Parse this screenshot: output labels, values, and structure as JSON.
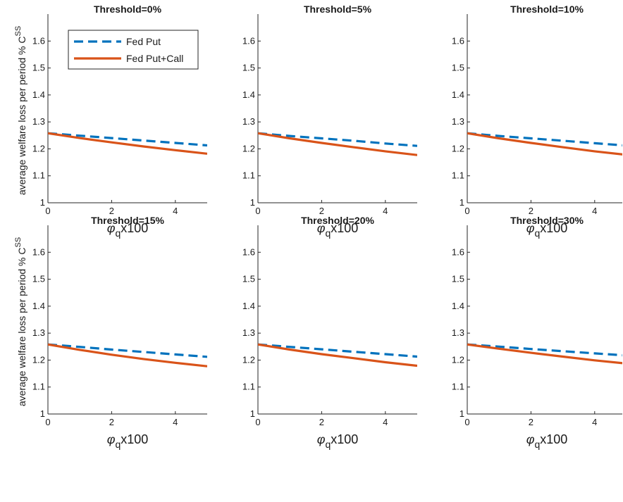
{
  "chart_data": {
    "type": "line",
    "ylabel": "average welfare loss per period % C",
    "ylabel_sup": "SS",
    "xlabel": {
      "symbol": "φ",
      "sub": "q",
      "suffix": "x100"
    },
    "xlim": [
      0,
      5
    ],
    "ylim": [
      1,
      1.7
    ],
    "xticks": [
      0,
      2,
      4
    ],
    "yticks": [
      1,
      1.1,
      1.2,
      1.3,
      1.4,
      1.5,
      1.6
    ],
    "ytick_labels": [
      "1",
      "1.1",
      "1.2",
      "1.3",
      "1.4",
      "1.5",
      "1.6"
    ],
    "legend": {
      "placement": "top-left of first panel",
      "entries": [
        "Fed Put",
        "Fed Put+Call"
      ]
    },
    "series_styles": [
      {
        "name": "Fed Put",
        "color": "#0072BD",
        "dash": true
      },
      {
        "name": "Fed Put+Call",
        "color": "#D95319",
        "dash": false
      }
    ],
    "x": [
      0,
      1,
      2,
      3,
      4,
      5
    ],
    "panels": [
      {
        "title": "Threshold=0%",
        "series": [
          {
            "name": "Fed Put",
            "values": [
              1.258,
              1.249,
              1.24,
              1.231,
              1.222,
              1.213
            ]
          },
          {
            "name": "Fed Put+Call",
            "values": [
              1.258,
              1.24,
              1.224,
              1.209,
              1.195,
              1.182
            ]
          }
        ]
      },
      {
        "title": "Threshold=5%",
        "series": [
          {
            "name": "Fed Put",
            "values": [
              1.258,
              1.248,
              1.239,
              1.23,
              1.22,
              1.211
            ]
          },
          {
            "name": "Fed Put+Call",
            "values": [
              1.258,
              1.239,
              1.222,
              1.206,
              1.191,
              1.177
            ]
          }
        ]
      },
      {
        "title": "Threshold=10%",
        "series": [
          {
            "name": "Fed Put",
            "values": [
              1.258,
              1.248,
              1.239,
              1.23,
              1.221,
              1.212
            ]
          },
          {
            "name": "Fed Put+Call",
            "values": [
              1.258,
              1.239,
              1.222,
              1.206,
              1.191,
              1.178
            ]
          }
        ]
      },
      {
        "title": "Threshold=15%",
        "series": [
          {
            "name": "Fed Put",
            "values": [
              1.258,
              1.249,
              1.239,
              1.23,
              1.221,
              1.212
            ]
          },
          {
            "name": "Fed Put+Call",
            "values": [
              1.258,
              1.238,
              1.22,
              1.204,
              1.19,
              1.177
            ]
          }
        ]
      },
      {
        "title": "Threshold=20%",
        "series": [
          {
            "name": "Fed Put",
            "values": [
              1.258,
              1.249,
              1.24,
              1.231,
              1.222,
              1.213
            ]
          },
          {
            "name": "Fed Put+Call",
            "values": [
              1.258,
              1.239,
              1.222,
              1.207,
              1.192,
              1.179
            ]
          }
        ]
      },
      {
        "title": "Threshold=30%",
        "series": [
          {
            "name": "Fed Put",
            "values": [
              1.258,
              1.25,
              1.241,
              1.233,
              1.225,
              1.217
            ]
          },
          {
            "name": "Fed Put+Call",
            "values": [
              1.258,
              1.242,
              1.227,
              1.213,
              1.199,
              1.187
            ]
          }
        ]
      }
    ]
  }
}
